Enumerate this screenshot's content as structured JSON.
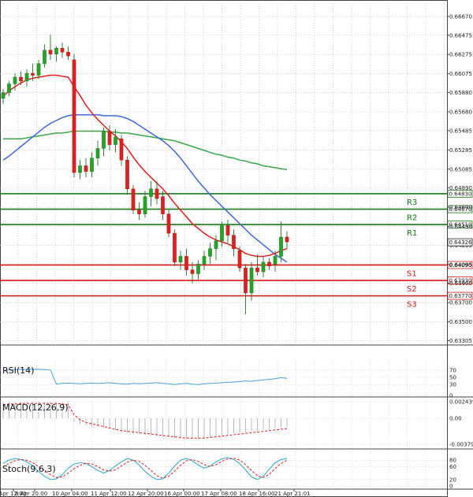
{
  "chart_data": {
    "type": "candlestick",
    "main_price_axis": [
      "0.66670",
      "0.66475",
      "0.66275",
      "0.66075",
      "0.65880",
      "0.65680",
      "0.65485",
      "0.65285",
      "0.65085",
      "0.64890",
      "0.64690",
      "0.64490",
      "0.64295",
      "0.64095",
      "0.63900",
      "0.63700",
      "0.63500",
      "0.63305"
    ],
    "x_labels": [
      "5 Apr 12:00",
      "8 Apr 20:00",
      "10 Apr 04:00",
      "11 Apr 12:00",
      "12 Apr 20:00",
      "16 Apr 00:00",
      "17 Apr 08:00",
      "18 Apr 16:00",
      "21 Apr 21:01"
    ],
    "levels": [
      {
        "name": "R3",
        "value": 0.6483,
        "label": "0.64830",
        "color": "#1a7a1a"
      },
      {
        "name": "R2",
        "value": 0.6467,
        "label": "0.64670",
        "color": "#1a7a1a"
      },
      {
        "name": "R1",
        "value": 0.6451,
        "label": "0.64510",
        "color": "#1a7a1a"
      },
      {
        "name": "S1",
        "value": 0.6409,
        "label": "0.64090",
        "color": "#d81818"
      },
      {
        "name": "S2",
        "value": 0.6393,
        "label": "0.63930",
        "color": "#d81818"
      },
      {
        "name": "S3",
        "value": 0.6377,
        "label": "0.63770",
        "color": "#d81818"
      }
    ],
    "current_price": {
      "value": 0.64326,
      "label": "0.64326"
    },
    "candles": [
      [
        0.6582,
        0.6592,
        0.6576,
        0.6588
      ],
      [
        0.6588,
        0.66,
        0.6584,
        0.6597
      ],
      [
        0.6597,
        0.6608,
        0.659,
        0.6604
      ],
      [
        0.6604,
        0.661,
        0.6596,
        0.66
      ],
      [
        0.66,
        0.6612,
        0.6594,
        0.6608
      ],
      [
        0.6608,
        0.6618,
        0.66,
        0.6606
      ],
      [
        0.6606,
        0.6622,
        0.6602,
        0.6618
      ],
      [
        0.6618,
        0.6638,
        0.6614,
        0.6632
      ],
      [
        0.6632,
        0.6648,
        0.6622,
        0.6628
      ],
      [
        0.6628,
        0.6636,
        0.662,
        0.6634
      ],
      [
        0.6634,
        0.664,
        0.6624,
        0.663
      ],
      [
        0.663,
        0.6636,
        0.6622,
        0.6626
      ],
      [
        0.6622,
        0.6628,
        0.65,
        0.6505
      ],
      [
        0.6505,
        0.6518,
        0.6498,
        0.6512
      ],
      [
        0.6512,
        0.652,
        0.65,
        0.6506
      ],
      [
        0.6506,
        0.6526,
        0.65,
        0.652
      ],
      [
        0.652,
        0.6538,
        0.6512,
        0.653
      ],
      [
        0.653,
        0.6552,
        0.6522,
        0.6548
      ],
      [
        0.6548,
        0.6554,
        0.6528,
        0.6534
      ],
      [
        0.6534,
        0.655,
        0.6526,
        0.6542
      ],
      [
        0.654,
        0.6544,
        0.6512,
        0.6518
      ],
      [
        0.6518,
        0.6522,
        0.6482,
        0.6488
      ],
      [
        0.6488,
        0.6492,
        0.6462,
        0.6466
      ],
      [
        0.6466,
        0.6474,
        0.6456,
        0.6462
      ],
      [
        0.6462,
        0.6486,
        0.6458,
        0.648
      ],
      [
        0.648,
        0.6496,
        0.647,
        0.6488
      ],
      [
        0.6488,
        0.6496,
        0.6472,
        0.6478
      ],
      [
        0.648,
        0.6486,
        0.6456,
        0.6462
      ],
      [
        0.6462,
        0.6466,
        0.6438,
        0.6442
      ],
      [
        0.6442,
        0.6446,
        0.6408,
        0.6412
      ],
      [
        0.6412,
        0.6424,
        0.6404,
        0.6418
      ],
      [
        0.6418,
        0.6426,
        0.6398,
        0.6404
      ],
      [
        0.6404,
        0.6412,
        0.639,
        0.64
      ],
      [
        0.64,
        0.6414,
        0.6394,
        0.641
      ],
      [
        0.641,
        0.6424,
        0.6404,
        0.6418
      ],
      [
        0.6418,
        0.6432,
        0.641,
        0.6426
      ],
      [
        0.6426,
        0.644,
        0.6414,
        0.6434
      ],
      [
        0.6434,
        0.6454,
        0.6428,
        0.645
      ],
      [
        0.645,
        0.6456,
        0.6432,
        0.644
      ],
      [
        0.644,
        0.6446,
        0.6418,
        0.6426
      ],
      [
        0.6424,
        0.6428,
        0.6402,
        0.6406
      ],
      [
        0.6406,
        0.641,
        0.6358,
        0.638
      ],
      [
        0.638,
        0.6412,
        0.6372,
        0.6406
      ],
      [
        0.6406,
        0.642,
        0.6398,
        0.6402
      ],
      [
        0.6402,
        0.6418,
        0.6396,
        0.6412
      ],
      [
        0.6412,
        0.6416,
        0.6404,
        0.6408
      ],
      [
        0.641,
        0.6424,
        0.6402,
        0.6418
      ],
      [
        0.6418,
        0.6454,
        0.6412,
        0.6438
      ],
      [
        0.6438,
        0.6444,
        0.6426,
        0.6433
      ]
    ],
    "ma_fast": [
      0.6584,
      0.659,
      0.6594,
      0.6598,
      0.6601,
      0.6603,
      0.6604,
      0.6605,
      0.6606,
      0.6606,
      0.6605,
      0.6604,
      0.6594,
      0.6585,
      0.6575,
      0.6567,
      0.656,
      0.6554,
      0.6548,
      0.6543,
      0.6537,
      0.653,
      0.6521,
      0.6513,
      0.6506,
      0.65,
      0.6494,
      0.6488,
      0.6481,
      0.6473,
      0.6466,
      0.6459,
      0.6452,
      0.6447,
      0.6442,
      0.6438,
      0.6435,
      0.6433,
      0.6431,
      0.6428,
      0.6425,
      0.6421,
      0.6419,
      0.6418,
      0.6418,
      0.6419,
      0.6421,
      0.6424,
      0.6426
    ],
    "ma_mid": [
      0.6518,
      0.6522,
      0.6527,
      0.6532,
      0.6537,
      0.6542,
      0.6547,
      0.6552,
      0.6556,
      0.6559,
      0.6562,
      0.6564,
      0.6565,
      0.6565,
      0.6565,
      0.6565,
      0.6565,
      0.6564,
      0.6564,
      0.6564,
      0.6563,
      0.6561,
      0.6558,
      0.6554,
      0.655,
      0.6546,
      0.6542,
      0.6538,
      0.6533,
      0.6527,
      0.652,
      0.6512,
      0.6504,
      0.6496,
      0.6489,
      0.6482,
      0.6476,
      0.647,
      0.6464,
      0.6458,
      0.6452,
      0.6446,
      0.644,
      0.6435,
      0.643,
      0.6425,
      0.642,
      0.6416,
      0.6412
    ],
    "ma_slow": [
      0.654,
      0.654,
      0.654,
      0.654,
      0.6541,
      0.6542,
      0.6543,
      0.6544,
      0.6545,
      0.6546,
      0.6546,
      0.6547,
      0.6548,
      0.6548,
      0.6548,
      0.6548,
      0.6548,
      0.6548,
      0.6547,
      0.6547,
      0.6546,
      0.6546,
      0.6545,
      0.6544,
      0.6543,
      0.6542,
      0.6541,
      0.654,
      0.6539,
      0.6538,
      0.6536,
      0.6534,
      0.6532,
      0.653,
      0.6528,
      0.6526,
      0.6524,
      0.6523,
      0.6521,
      0.652,
      0.6518,
      0.6517,
      0.6515,
      0.6514,
      0.6512,
      0.6511,
      0.651,
      0.6509,
      0.6508
    ],
    "rsi": {
      "title": "RSI(14)",
      "ticks": [
        "70",
        "50",
        "30",
        "0"
      ],
      "values": [
        68,
        70,
        71,
        72,
        71,
        72,
        72,
        71,
        70,
        31,
        33,
        34,
        33,
        32,
        33,
        34,
        33,
        34,
        35,
        33,
        32,
        31,
        33,
        32,
        33,
        34,
        35,
        33,
        32,
        30,
        32,
        33,
        31,
        30,
        32,
        33,
        34,
        35,
        36,
        37,
        38,
        40,
        39,
        41,
        43,
        44,
        46,
        49,
        47
      ]
    },
    "macd": {
      "title": "MACD(12,26,9)",
      "ticks": [
        "0.002439",
        "0.00",
        "-0.003794"
      ],
      "bars": [
        0.0024,
        0.0024,
        0.0024,
        0.0024,
        0.0024,
        0.0024,
        0.0024,
        0.0024,
        0.0024,
        0.0024,
        0.0024,
        0.0024,
        -0.0005,
        -0.0008,
        -0.001,
        -0.0011,
        -0.0012,
        -0.0014,
        -0.0016,
        -0.0018,
        -0.002,
        -0.0021,
        -0.0022,
        -0.0023,
        -0.0024,
        -0.0025,
        -0.0026,
        -0.0027,
        -0.0028,
        -0.0029,
        -0.003,
        -0.003,
        -0.003,
        -0.003,
        -0.0029,
        -0.0028,
        -0.0026,
        -0.0025,
        -0.0024,
        -0.0022,
        -0.0021,
        -0.002,
        -0.0019,
        -0.0018,
        -0.0017,
        -0.0016,
        -0.0015,
        -0.0014,
        -0.0013
      ],
      "signal": [
        0.002,
        0.0021,
        0.0021,
        0.0022,
        0.0022,
        0.0022,
        0.0022,
        0.0022,
        0.0022,
        0.0022,
        0.0021,
        0.002,
        0.0005,
        -0.0002,
        -0.0006,
        -0.0008,
        -0.001,
        -0.0012,
        -0.0014,
        -0.0016,
        -0.0018,
        -0.0019,
        -0.002,
        -0.0021,
        -0.0022,
        -0.0023,
        -0.0024,
        -0.0025,
        -0.0026,
        -0.0027,
        -0.0028,
        -0.0029,
        -0.0029,
        -0.0029,
        -0.0029,
        -0.0028,
        -0.0027,
        -0.0026,
        -0.0025,
        -0.0024,
        -0.0023,
        -0.0022,
        -0.0021,
        -0.002,
        -0.0019,
        -0.0018,
        -0.0017,
        -0.0016,
        -0.0015
      ]
    },
    "stoch": {
      "title": "Stoch(9,6,3)",
      "ticks": [
        "80",
        "60",
        "20",
        "0"
      ],
      "k": [
        70,
        80,
        85,
        82,
        75,
        62,
        45,
        30,
        20,
        22,
        35,
        55,
        68,
        72,
        70,
        60,
        48,
        40,
        48,
        62,
        75,
        85,
        80,
        65,
        45,
        30,
        20,
        22,
        40,
        62,
        80,
        85,
        78,
        65,
        55,
        62,
        75,
        84,
        88,
        82,
        70,
        50,
        28,
        20,
        30,
        52,
        72,
        82,
        85
      ],
      "d": [
        60,
        70,
        78,
        82,
        80,
        72,
        60,
        48,
        35,
        26,
        28,
        40,
        54,
        64,
        70,
        68,
        60,
        50,
        46,
        50,
        62,
        74,
        80,
        76,
        64,
        48,
        32,
        24,
        30,
        46,
        64,
        78,
        82,
        76,
        66,
        60,
        66,
        76,
        84,
        86,
        80,
        66,
        48,
        32,
        26,
        36,
        54,
        70,
        80
      ]
    }
  }
}
